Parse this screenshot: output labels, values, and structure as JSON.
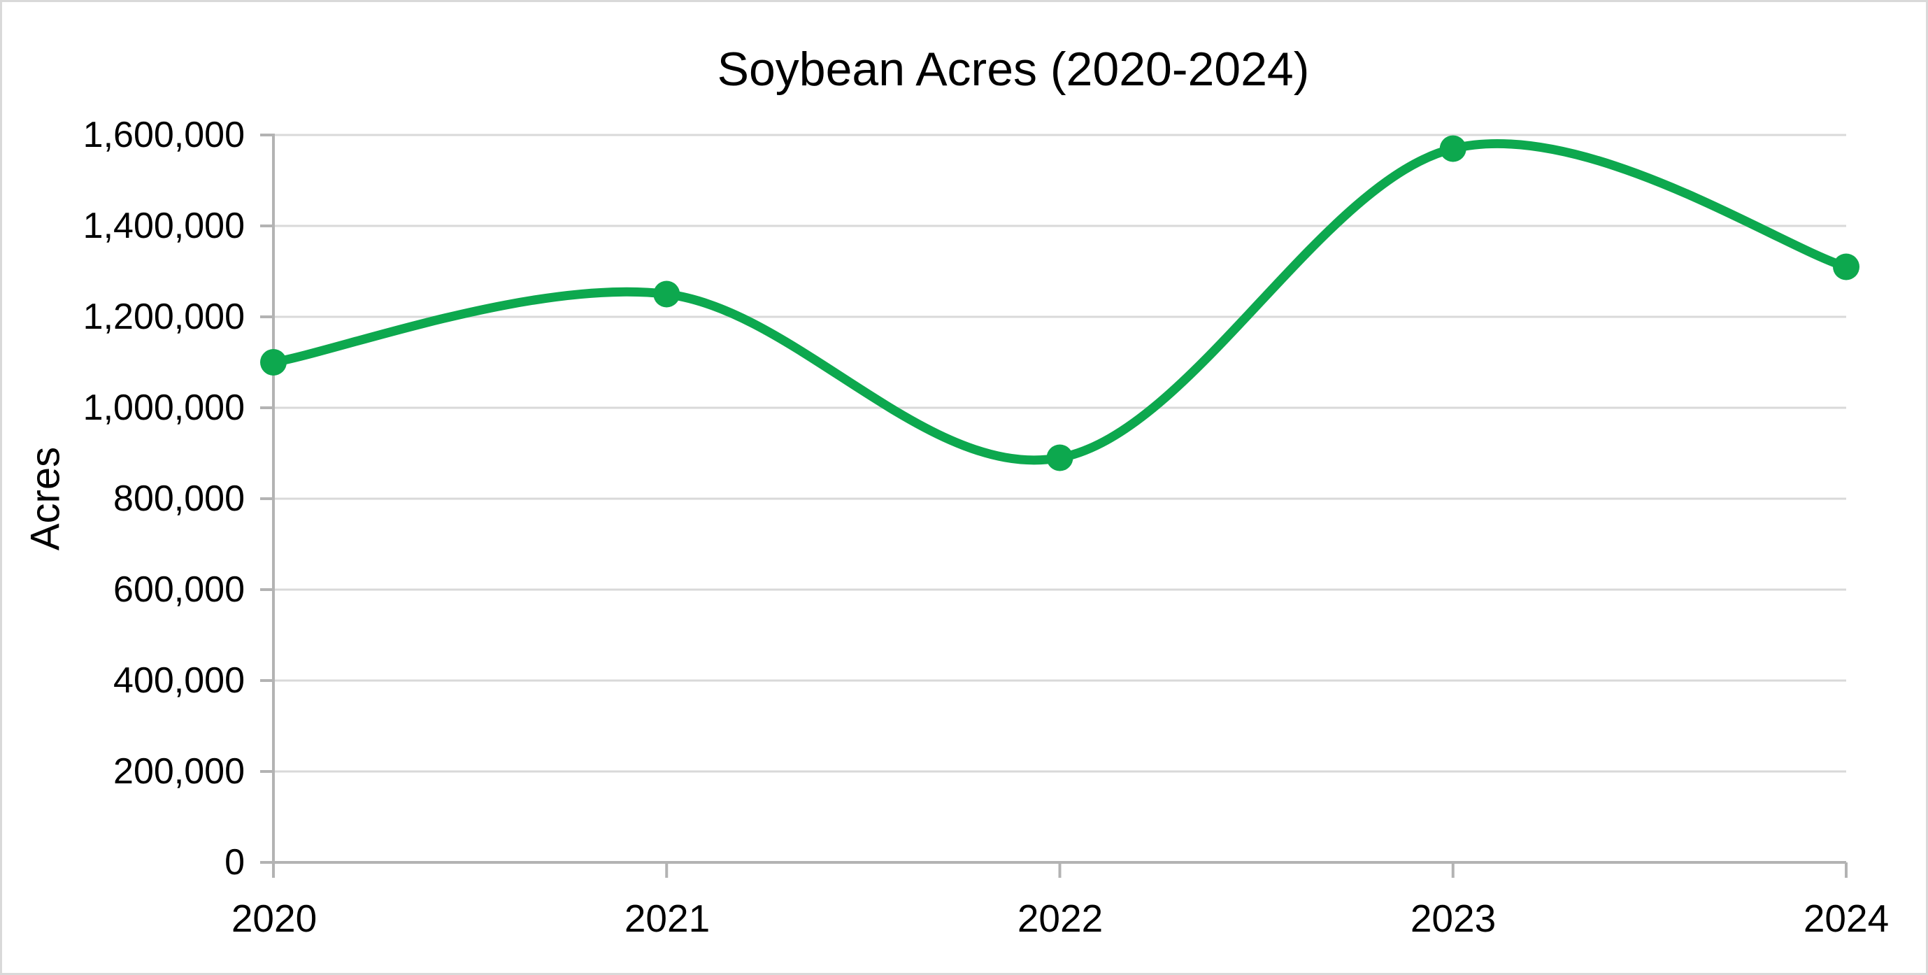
{
  "chart_data": {
    "type": "line",
    "title": "Soybean Acres (2020-2024)",
    "ylabel": "Acres",
    "xlabel": "",
    "categories": [
      "2020",
      "2021",
      "2022",
      "2023",
      "2024"
    ],
    "values": [
      1100000,
      1250000,
      890000,
      1570000,
      1310000
    ],
    "y_tick_labels": [
      "1,600,000",
      "1,400,000",
      "1,200,000",
      "1,000,000",
      "800,000",
      "600,000",
      "400,000",
      "200,000",
      "0"
    ],
    "ylim": [
      0,
      1600000
    ],
    "grid": "horizontal",
    "legend": "none",
    "smooth": true,
    "marker": "circle",
    "colors": {
      "line": "#0da84e",
      "marker": "#0da84e",
      "gridline": "#d9d9d9",
      "axis": "#b3b3b3",
      "text": "#000000",
      "frame_border": "#d9d9d9"
    }
  }
}
